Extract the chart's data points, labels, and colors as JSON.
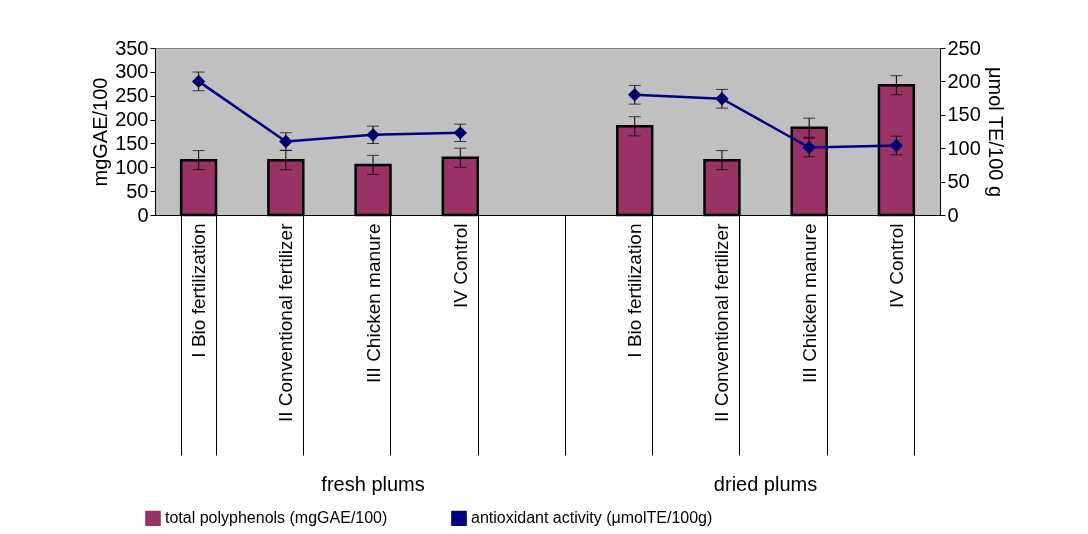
{
  "chart_data": {
    "type": "bar",
    "categories": [
      "I Bio fertilization",
      "II Conventional fertilizer",
      "III Chicken manure",
      "IV Control",
      null,
      "I Bio fertilization",
      "II Conventional fertilizer",
      "III Chicken manure",
      "IV Control"
    ],
    "series": [
      {
        "name": "total polyphenols (mgGAE/100)",
        "color": "#993366",
        "values": [
          115,
          115,
          105,
          120,
          null,
          186,
          115,
          183,
          272
        ],
        "errors": [
          20,
          20,
          20,
          20,
          null,
          20,
          20,
          20,
          20
        ]
      },
      {
        "name": "antioxidant activity (μmolTE/100g)",
        "type": "line",
        "axis": "y2",
        "color": "#000080",
        "values": [
          200,
          110,
          120,
          123,
          null,
          180,
          174,
          101,
          104
        ],
        "errors": [
          14,
          13,
          13,
          13,
          null,
          14,
          14,
          14,
          14
        ]
      }
    ],
    "ylabel": "mgGAE/100",
    "y2label": "μmol TE/100 g",
    "ylim": [
      0,
      350
    ],
    "yticks": [
      0,
      50,
      100,
      150,
      200,
      250,
      300,
      350
    ],
    "y2lim": [
      0,
      250
    ],
    "y2ticks": [
      0,
      50,
      100,
      150,
      200,
      250
    ],
    "annotations": [
      "fresh plums",
      "dried plums"
    ],
    "marker": "diamond",
    "legend": "bottom"
  }
}
